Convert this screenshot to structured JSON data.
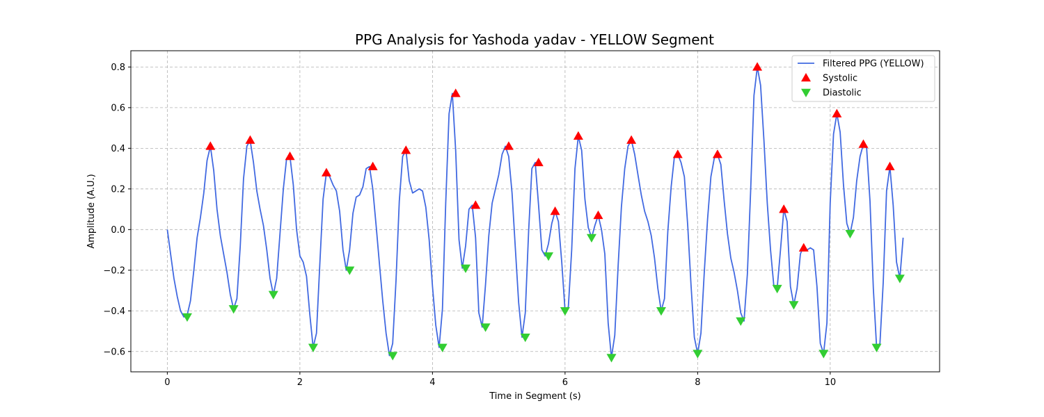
{
  "chart_data": {
    "type": "line",
    "title": "PPG Analysis for Yashoda yadav - YELLOW Segment",
    "xlabel": "Time in Segment (s)",
    "ylabel": "Amplitude (A.U.)",
    "xlim": [
      -0.55,
      11.65
    ],
    "ylim": [
      -0.7,
      0.88
    ],
    "xticks": [
      0,
      2,
      4,
      6,
      8,
      10
    ],
    "yticks": [
      -0.6,
      -0.4,
      -0.2,
      0.0,
      0.2,
      0.4,
      0.6,
      0.8
    ],
    "xtick_labels": [
      "0",
      "2",
      "4",
      "6",
      "8",
      "10"
    ],
    "ytick_labels": [
      "−0.6",
      "−0.4",
      "−0.2",
      "0.0",
      "0.2",
      "0.4",
      "0.6",
      "0.8"
    ],
    "grid": true,
    "legend_position": "top-right",
    "colors": {
      "line": "#4169e1",
      "systolic": "#ff0000",
      "diastolic": "#32cd32"
    },
    "series": [
      {
        "name": "Filtered PPG (YELLOW)",
        "type": "line",
        "x": [
          0,
          0.05,
          0.1,
          0.15,
          0.2,
          0.25,
          0.3,
          0.35,
          0.4,
          0.45,
          0.5,
          0.55,
          0.6,
          0.65,
          0.7,
          0.75,
          0.8,
          0.85,
          0.9,
          0.95,
          1.0,
          1.05,
          1.1,
          1.15,
          1.2,
          1.25,
          1.3,
          1.35,
          1.4,
          1.45,
          1.5,
          1.55,
          1.6,
          1.65,
          1.7,
          1.75,
          1.8,
          1.85,
          1.9,
          1.95,
          2.0,
          2.05,
          2.1,
          2.15,
          2.2,
          2.25,
          2.3,
          2.35,
          2.4,
          2.45,
          2.5,
          2.55,
          2.6,
          2.65,
          2.7,
          2.75,
          2.8,
          2.85,
          2.9,
          2.95,
          3.0,
          3.05,
          3.1,
          3.15,
          3.2,
          3.25,
          3.3,
          3.35,
          3.4,
          3.45,
          3.5,
          3.55,
          3.6,
          3.65,
          3.7,
          3.75,
          3.8,
          3.85,
          3.9,
          3.95,
          4.0,
          4.05,
          4.1,
          4.15,
          4.2,
          4.25,
          4.3,
          4.35,
          4.4,
          4.45,
          4.5,
          4.55,
          4.6,
          4.65,
          4.7,
          4.75,
          4.8,
          4.85,
          4.9,
          4.95,
          5.0,
          5.05,
          5.1,
          5.15,
          5.2,
          5.25,
          5.3,
          5.35,
          5.4,
          5.45,
          5.5,
          5.55,
          5.6,
          5.65,
          5.7,
          5.75,
          5.8,
          5.85,
          5.9,
          5.95,
          6.0,
          6.05,
          6.1,
          6.15,
          6.2,
          6.25,
          6.3,
          6.35,
          6.4,
          6.45,
          6.5,
          6.55,
          6.6,
          6.65,
          6.7,
          6.75,
          6.8,
          6.85,
          6.9,
          6.95,
          7.0,
          7.05,
          7.1,
          7.15,
          7.2,
          7.25,
          7.3,
          7.35,
          7.4,
          7.45,
          7.5,
          7.55,
          7.6,
          7.65,
          7.7,
          7.75,
          7.8,
          7.85,
          7.9,
          7.95,
          8.0,
          8.05,
          8.1,
          8.15,
          8.2,
          8.25,
          8.3,
          8.35,
          8.4,
          8.45,
          8.5,
          8.55,
          8.6,
          8.65,
          8.7,
          8.75,
          8.8,
          8.85,
          8.9,
          8.95,
          9.0,
          9.05,
          9.1,
          9.15,
          9.2,
          9.25,
          9.3,
          9.35,
          9.4,
          9.45,
          9.5,
          9.55,
          9.6,
          9.65,
          9.7,
          9.75,
          9.8,
          9.85,
          9.9,
          9.95,
          10.0,
          10.05,
          10.1,
          10.15,
          10.2,
          10.25,
          10.3,
          10.35,
          10.4,
          10.45,
          10.5,
          10.55,
          10.6,
          10.65,
          10.7,
          10.75,
          10.8,
          10.85,
          10.9,
          10.95,
          11.0,
          11.05,
          11.1
        ],
        "y": [
          0.0,
          -0.12,
          -0.24,
          -0.33,
          -0.4,
          -0.43,
          -0.42,
          -0.35,
          -0.2,
          -0.04,
          0.06,
          0.18,
          0.34,
          0.41,
          0.29,
          0.1,
          -0.03,
          -0.12,
          -0.21,
          -0.32,
          -0.39,
          -0.34,
          -0.08,
          0.25,
          0.41,
          0.44,
          0.33,
          0.19,
          0.1,
          0.02,
          -0.1,
          -0.24,
          -0.32,
          -0.24,
          -0.02,
          0.2,
          0.35,
          0.36,
          0.22,
          0.0,
          -0.13,
          -0.16,
          -0.23,
          -0.42,
          -0.58,
          -0.51,
          -0.17,
          0.15,
          0.28,
          0.26,
          0.22,
          0.19,
          0.09,
          -0.1,
          -0.2,
          -0.1,
          0.08,
          0.16,
          0.17,
          0.21,
          0.3,
          0.31,
          0.2,
          0.02,
          -0.17,
          -0.35,
          -0.51,
          -0.62,
          -0.56,
          -0.25,
          0.14,
          0.36,
          0.39,
          0.24,
          0.18,
          0.19,
          0.2,
          0.19,
          0.11,
          -0.05,
          -0.28,
          -0.47,
          -0.58,
          -0.39,
          0.13,
          0.57,
          0.67,
          0.39,
          -0.05,
          -0.19,
          -0.08,
          0.1,
          0.12,
          -0.04,
          -0.41,
          -0.48,
          -0.27,
          -0.03,
          0.13,
          0.2,
          0.27,
          0.37,
          0.41,
          0.36,
          0.18,
          -0.09,
          -0.36,
          -0.53,
          -0.41,
          -0.01,
          0.3,
          0.33,
          0.12,
          -0.1,
          -0.13,
          -0.07,
          0.03,
          0.09,
          0.04,
          -0.16,
          -0.4,
          -0.38,
          -0.1,
          0.3,
          0.46,
          0.39,
          0.15,
          0.01,
          -0.04,
          0.02,
          0.07,
          0.0,
          -0.12,
          -0.46,
          -0.63,
          -0.52,
          -0.18,
          0.11,
          0.3,
          0.41,
          0.44,
          0.37,
          0.27,
          0.17,
          0.09,
          0.04,
          -0.03,
          -0.14,
          -0.29,
          -0.4,
          -0.34,
          -0.01,
          0.21,
          0.36,
          0.37,
          0.33,
          0.26,
          0.02,
          -0.27,
          -0.53,
          -0.61,
          -0.51,
          -0.21,
          0.05,
          0.26,
          0.35,
          0.37,
          0.32,
          0.14,
          -0.02,
          -0.14,
          -0.21,
          -0.3,
          -0.41,
          -0.45,
          -0.22,
          0.19,
          0.66,
          0.8,
          0.71,
          0.44,
          0.13,
          -0.1,
          -0.28,
          -0.29,
          -0.1,
          0.1,
          0.04,
          -0.28,
          -0.37,
          -0.29,
          -0.12,
          -0.08,
          -0.1,
          -0.09,
          -0.1,
          -0.28,
          -0.56,
          -0.61,
          -0.46,
          0.13,
          0.47,
          0.57,
          0.48,
          0.22,
          0.03,
          -0.02,
          0.06,
          0.24,
          0.36,
          0.42,
          0.4,
          0.14,
          -0.29,
          -0.58,
          -0.56,
          -0.26,
          0.19,
          0.31,
          0.12,
          -0.16,
          -0.24,
          -0.04
        ]
      },
      {
        "name": "Systolic",
        "type": "scatter",
        "marker": "triangle-up",
        "x": [
          0.65,
          1.25,
          1.85,
          2.4,
          3.1,
          3.6,
          4.35,
          4.65,
          5.15,
          5.6,
          5.85,
          6.2,
          6.5,
          7.0,
          7.7,
          8.3,
          8.9,
          9.3,
          9.6,
          10.1,
          10.5,
          10.9
        ],
        "y": [
          0.41,
          0.44,
          0.36,
          0.28,
          0.31,
          0.39,
          0.67,
          0.12,
          0.41,
          0.33,
          0.09,
          0.46,
          0.07,
          0.44,
          0.37,
          0.37,
          0.8,
          0.1,
          -0.09,
          0.57,
          0.42,
          0.31
        ]
      },
      {
        "name": "Diastolic",
        "type": "scatter",
        "marker": "triangle-down",
        "x": [
          0.3,
          1.0,
          1.6,
          2.2,
          2.75,
          3.4,
          4.15,
          4.5,
          4.8,
          5.4,
          5.75,
          6.0,
          6.4,
          6.7,
          7.45,
          8.0,
          8.65,
          9.2,
          9.45,
          9.9,
          10.3,
          10.7,
          11.05
        ],
        "y": [
          -0.43,
          -0.39,
          -0.32,
          -0.58,
          -0.2,
          -0.62,
          -0.58,
          -0.19,
          -0.48,
          -0.53,
          -0.13,
          -0.4,
          -0.04,
          -0.63,
          -0.4,
          -0.61,
          -0.45,
          -0.29,
          -0.37,
          -0.61,
          -0.02,
          -0.58,
          -0.24
        ]
      }
    ]
  }
}
